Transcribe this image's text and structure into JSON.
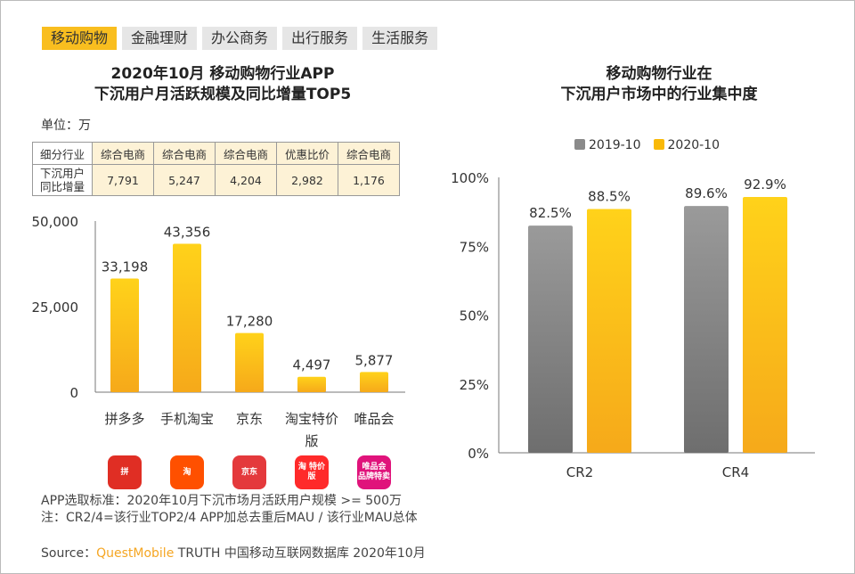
{
  "tabs": [
    "移动购物",
    "金融理财",
    "办公商务",
    "出行服务",
    "生活服务"
  ],
  "watermark": "QUESTMOBILE",
  "left": {
    "title_line1": "2020年10月 移动购物行业APP",
    "title_line2": "下沉用户月活跃规模及同比增量TOP5",
    "unit": "单位：万",
    "table": {
      "row1_header": "细分行业",
      "row1": [
        "综合电商",
        "综合电商",
        "综合电商",
        "优惠比价",
        "综合电商"
      ],
      "row2_header_line1": "下沉用户",
      "row2_header_line2": "同比增量",
      "row2": [
        "7,791",
        "5,247",
        "4,204",
        "2,982",
        "1,176"
      ]
    },
    "apps": [
      {
        "name": "拼多多",
        "icon": "pinduoduo-icon",
        "color": "#e02e24",
        "text": "拼"
      },
      {
        "name": "手机淘宝",
        "icon": "taobao-icon",
        "color": "#ff5000",
        "text": "淘"
      },
      {
        "name": "京东",
        "icon": "jd-icon",
        "color": "#e4393c",
        "text": "京东"
      },
      {
        "name": "淘宝特价版",
        "icon": "taobao-special-icon",
        "color": "#ff2a2a",
        "text": "淘 特价版"
      },
      {
        "name": "唯品会",
        "icon": "vipshop-icon",
        "color": "#e0137b",
        "text": "唯品会 品牌特卖"
      }
    ]
  },
  "right": {
    "title_line1": "移动购物行业在",
    "title_line2": "下沉用户市场中的行业集中度"
  },
  "notes": {
    "line1": "APP选取标准：2020年10月下沉市场月活跃用户规模 >= 500万",
    "line2": "注：CR2/4=该行业TOP2/4 APP加总去重后MAU / 该行业MAU总体"
  },
  "source": {
    "prefix": "Source：",
    "brand": "QuestMobile",
    "rest": " TRUTH 中国移动互联网数据库 2020年10月"
  },
  "chart_data": [
    {
      "type": "bar",
      "categories": [
        "拼多多",
        "手机淘宝",
        "京东",
        "淘宝特价版",
        "唯品会"
      ],
      "category_labels": [
        [
          "拼多多"
        ],
        [
          "手机淘宝"
        ],
        [
          "京东"
        ],
        [
          "淘宝特价",
          "版"
        ],
        [
          "唯品会"
        ]
      ],
      "values": [
        33198,
        43356,
        17280,
        4497,
        5877
      ],
      "value_labels": [
        "33,198",
        "43,356",
        "17,280",
        "4,497",
        "5,877"
      ],
      "ylim": [
        0,
        50000
      ],
      "yticks": [
        0,
        25000,
        50000
      ],
      "ytick_labels": [
        "0",
        "25,000",
        "50,000"
      ],
      "color": "#f9b908",
      "title": "2020年10月 移动购物行业APP 下沉用户月活跃规模及同比增量TOP5",
      "xlabel": "",
      "ylabel": ""
    },
    {
      "type": "bar",
      "categories": [
        "CR2",
        "CR4"
      ],
      "series": [
        {
          "name": "2019-10",
          "values": [
            82.5,
            89.6
          ],
          "labels": [
            "82.5%",
            "89.6%"
          ],
          "color": "#8a8a8a"
        },
        {
          "name": "2020-10",
          "values": [
            88.5,
            92.9
          ],
          "labels": [
            "88.5%",
            "92.9%"
          ],
          "color": "#f9b908"
        }
      ],
      "ylim": [
        0,
        100
      ],
      "yticks": [
        0,
        25,
        50,
        75,
        100
      ],
      "ytick_labels": [
        "0%",
        "25%",
        "50%",
        "75%",
        "100%"
      ],
      "legend": "top",
      "title": "移动购物行业在 下沉用户市场中的行业集中度",
      "xlabel": "",
      "ylabel": ""
    }
  ]
}
